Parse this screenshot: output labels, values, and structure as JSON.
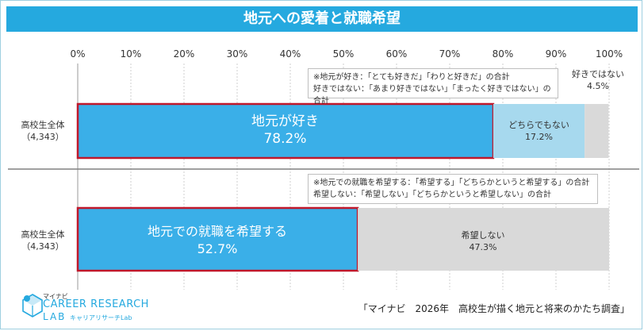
{
  "title": "地元への愛着と就職希望",
  "chart_data": {
    "type": "bar",
    "stacked": true,
    "orientation": "horizontal",
    "xlim": [
      0,
      100
    ],
    "x_ticks": [
      "0%",
      "10%",
      "20%",
      "30%",
      "40%",
      "50%",
      "60%",
      "70%",
      "80%",
      "90%",
      "100%"
    ],
    "charts": [
      {
        "row_label": "高校生全体",
        "row_count": "（4,343）",
        "note_lines": [
          "※地元が好き：「とても好きだ」「わりと好きだ」の合計",
          "好きではない：「あまり好きではない」「まったく好きではない」の合計"
        ],
        "segments": [
          {
            "name": "地元が好き",
            "value": 78.2,
            "label": "78.2%",
            "color": "#3aafe8",
            "highlight": true
          },
          {
            "name": "どちらでもない",
            "value": 17.2,
            "label": "17.2%",
            "color": "#a7d9ee"
          },
          {
            "name": "好きではない",
            "value": 4.5,
            "label": "4.5%",
            "color": "#d9d9d9"
          }
        ]
      },
      {
        "row_label": "高校生全体",
        "row_count": "（4,343）",
        "note_lines": [
          "※地元での就職を希望する：「希望する」「どちらかというと希望する」の合計",
          "希望しない：「希望しない」「どちらかというと希望しない」の合計"
        ],
        "segments": [
          {
            "name": "地元での就職を希望する",
            "value": 52.7,
            "label": "52.7%",
            "color": "#3aafe8",
            "highlight": true
          },
          {
            "name": "希望しない",
            "value": 47.3,
            "label": "47.3%",
            "color": "#d9d9d9"
          }
        ]
      }
    ]
  },
  "logo": {
    "top": "マイナビ",
    "main": "CAREER RESEARCH",
    "lab": "LAB",
    "sub": "キャリアリサーチLab"
  },
  "source": "「マイナビ　2026年　高校生が描く地元と将来のかたち調査」"
}
